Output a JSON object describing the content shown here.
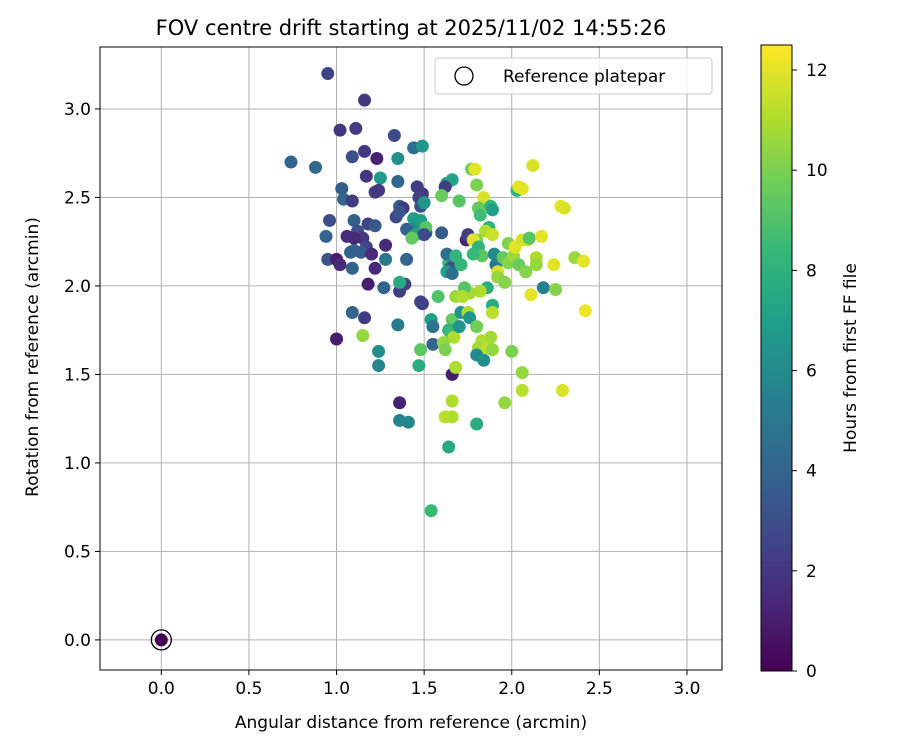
{
  "chart_data": {
    "type": "scatter",
    "title": "FOV centre drift starting at 2025/11/02 14:55:26",
    "xlabel": "Angular distance from reference (arcmin)",
    "ylabel": "Rotation from reference (arcmin)",
    "xlim": [
      -0.35,
      3.2
    ],
    "ylim": [
      -0.17,
      3.35
    ],
    "xticks": [
      "0.0",
      "0.5",
      "1.0",
      "1.5",
      "2.0",
      "2.5",
      "3.0"
    ],
    "yticks": [
      "0.0",
      "0.5",
      "1.0",
      "1.5",
      "2.0",
      "2.5",
      "3.0"
    ],
    "grid": true,
    "legend": {
      "position": "top-right",
      "entries": [
        "Reference platepar"
      ]
    },
    "colorbar": {
      "label": "Hours from first FF file",
      "range": [
        0,
        12.5
      ],
      "ticks": [
        "0",
        "2",
        "4",
        "6",
        "8",
        "10",
        "12"
      ],
      "colormap": "viridis"
    },
    "reference_point": {
      "x": 0.0,
      "y": 0.0,
      "hours": 0.0
    },
    "points": [
      [
        0.95,
        3.2,
        2.5
      ],
      [
        1.16,
        3.05,
        2.0
      ],
      [
        1.11,
        2.89,
        2.2
      ],
      [
        1.02,
        2.88,
        2.0
      ],
      [
        1.33,
        2.85,
        2.8
      ],
      [
        0.74,
        2.7,
        4.0
      ],
      [
        0.88,
        2.67,
        4.2
      ],
      [
        1.09,
        2.73,
        3.0
      ],
      [
        1.16,
        2.76,
        2.0
      ],
      [
        1.23,
        2.72,
        1.2
      ],
      [
        1.44,
        2.78,
        4.5
      ],
      [
        1.35,
        2.72,
        6.2
      ],
      [
        1.49,
        2.79,
        6.6
      ],
      [
        1.17,
        2.62,
        2.0
      ],
      [
        1.25,
        2.61,
        6.8
      ],
      [
        1.35,
        2.59,
        4.0
      ],
      [
        1.63,
        2.58,
        7.0
      ],
      [
        1.66,
        2.6,
        7.2
      ],
      [
        1.62,
        2.56,
        2.3
      ],
      [
        1.46,
        2.56,
        2.3
      ],
      [
        1.03,
        2.55,
        3.6
      ],
      [
        1.04,
        2.49,
        4.0
      ],
      [
        1.09,
        2.48,
        2.2
      ],
      [
        1.22,
        2.53,
        2.3
      ],
      [
        1.24,
        2.54,
        2.0
      ],
      [
        1.49,
        2.52,
        2.1
      ],
      [
        1.47,
        2.5,
        2.4
      ],
      [
        1.48,
        2.45,
        3.0
      ],
      [
        1.5,
        2.47,
        6.5
      ],
      [
        1.36,
        2.45,
        4.0
      ],
      [
        1.38,
        2.44,
        2.0
      ],
      [
        1.6,
        2.51,
        9.6
      ],
      [
        1.7,
        2.48,
        9.2
      ],
      [
        1.77,
        2.66,
        9.8
      ],
      [
        1.79,
        2.66,
        12.0
      ],
      [
        1.8,
        2.57,
        10.0
      ],
      [
        1.84,
        2.5,
        11.8
      ],
      [
        1.82,
        2.44,
        11.0
      ],
      [
        1.81,
        2.44,
        9.5
      ],
      [
        1.88,
        2.45,
        8.2
      ],
      [
        1.89,
        2.43,
        7.0
      ],
      [
        1.82,
        2.4,
        8.6
      ],
      [
        1.87,
        2.33,
        8.0
      ],
      [
        1.85,
        2.31,
        11.0
      ],
      [
        1.89,
        2.29,
        11.5
      ],
      [
        0.96,
        2.37,
        3.0
      ],
      [
        1.1,
        2.37,
        3.8
      ],
      [
        1.34,
        2.39,
        2.8
      ],
      [
        1.36,
        2.42,
        3.2
      ],
      [
        1.44,
        2.38,
        7.0
      ],
      [
        1.46,
        2.33,
        6.0
      ],
      [
        1.48,
        2.37,
        7.0
      ],
      [
        1.4,
        2.32,
        3.8
      ],
      [
        1.45,
        2.29,
        7.0
      ],
      [
        1.51,
        2.3,
        3.5
      ],
      [
        1.51,
        2.33,
        9.2
      ],
      [
        1.5,
        2.29,
        2.8
      ],
      [
        1.43,
        2.27,
        9.5
      ],
      [
        1.6,
        2.3,
        3.5
      ],
      [
        1.18,
        2.35,
        2.5
      ],
      [
        1.22,
        2.34,
        3.5
      ],
      [
        1.12,
        2.31,
        3.0
      ],
      [
        1.15,
        2.27,
        2.0
      ],
      [
        0.94,
        2.28,
        4.0
      ],
      [
        1.06,
        2.28,
        1.5
      ],
      [
        1.1,
        2.27,
        1.5
      ],
      [
        1.17,
        2.22,
        2.5
      ],
      [
        1.28,
        2.23,
        1.5
      ],
      [
        1.08,
        2.19,
        4.0
      ],
      [
        1.14,
        2.19,
        3.5
      ],
      [
        1.2,
        2.18,
        1.5
      ],
      [
        1.1,
        2.2,
        3.8
      ],
      [
        0.95,
        2.15,
        3.2
      ],
      [
        1.0,
        2.15,
        1.0
      ],
      [
        1.02,
        2.12,
        1.5
      ],
      [
        1.09,
        2.1,
        4.0
      ],
      [
        1.22,
        2.1,
        1.5
      ],
      [
        1.28,
        2.15,
        5.0
      ],
      [
        1.4,
        2.15,
        4.0
      ],
      [
        1.18,
        2.01,
        1.0
      ],
      [
        1.27,
        1.99,
        4.0
      ],
      [
        1.36,
        1.97,
        2.2
      ],
      [
        1.39,
        2.01,
        2.5
      ],
      [
        1.36,
        2.02,
        7.5
      ],
      [
        1.64,
        2.13,
        8.5
      ],
      [
        1.63,
        2.18,
        4.5
      ],
      [
        1.67,
        2.13,
        5.8
      ],
      [
        1.68,
        2.17,
        8.2
      ],
      [
        1.65,
        2.1,
        3.0
      ],
      [
        1.63,
        2.08,
        7.0
      ],
      [
        1.66,
        2.07,
        4.5
      ],
      [
        1.71,
        2.12,
        8.2
      ],
      [
        1.74,
        2.26,
        1.2
      ],
      [
        1.75,
        2.29,
        2.3
      ],
      [
        1.8,
        2.26,
        10.2
      ],
      [
        1.78,
        2.26,
        12.0
      ],
      [
        1.81,
        2.22,
        8.0
      ],
      [
        1.83,
        2.17,
        9.3
      ],
      [
        1.78,
        2.18,
        8.4
      ],
      [
        1.9,
        2.18,
        6.0
      ],
      [
        1.91,
        2.12,
        5.0
      ],
      [
        1.95,
        2.16,
        9.5
      ],
      [
        1.92,
        2.08,
        11.8
      ],
      [
        1.92,
        2.05,
        10.5
      ],
      [
        1.96,
        2.02,
        10.2
      ],
      [
        1.98,
        2.13,
        10.2
      ],
      [
        2.01,
        2.17,
        10.6
      ],
      [
        1.98,
        2.24,
        10.2
      ],
      [
        2.02,
        2.22,
        12.0
      ],
      [
        2.04,
        2.12,
        9.6
      ],
      [
        2.06,
        2.26,
        11.8
      ],
      [
        2.09,
        2.26,
        11.5
      ],
      [
        2.1,
        2.27,
        9.2
      ],
      [
        2.14,
        2.16,
        11.0
      ],
      [
        2.14,
        2.12,
        10.5
      ],
      [
        2.08,
        2.08,
        10.2
      ],
      [
        2.17,
        2.28,
        12.0
      ],
      [
        2.24,
        2.12,
        12.0
      ],
      [
        2.36,
        2.16,
        10.6
      ],
      [
        2.41,
        2.14,
        12.0
      ],
      [
        2.03,
        2.54,
        8.0
      ],
      [
        2.04,
        2.56,
        12.0
      ],
      [
        2.06,
        2.55,
        12.0
      ],
      [
        2.12,
        2.68,
        11.8
      ],
      [
        2.28,
        2.45,
        12.0
      ],
      [
        2.3,
        2.44,
        11.8
      ],
      [
        2.42,
        1.86,
        12.2
      ],
      [
        2.18,
        1.99,
        5.5
      ],
      [
        2.25,
        1.98,
        10.2
      ],
      [
        2.11,
        1.95,
        12.0
      ],
      [
        1.86,
        1.99,
        7.8
      ],
      [
        1.82,
        1.97,
        11.0
      ],
      [
        1.76,
        1.96,
        10.8
      ],
      [
        1.73,
        1.99,
        9.2
      ],
      [
        1.68,
        1.94,
        10.6
      ],
      [
        1.72,
        1.94,
        11.0
      ],
      [
        1.58,
        1.94,
        9.0
      ],
      [
        1.49,
        1.9,
        2.2
      ],
      [
        1.48,
        1.91,
        2.5
      ],
      [
        1.54,
        1.81,
        7.0
      ],
      [
        1.66,
        1.81,
        9.5
      ],
      [
        1.71,
        1.85,
        6.5
      ],
      [
        1.75,
        1.85,
        11.0
      ],
      [
        1.76,
        1.82,
        6.5
      ],
      [
        1.89,
        1.89,
        7.8
      ],
      [
        1.89,
        1.85,
        11.2
      ],
      [
        1.55,
        1.77,
        4.8
      ],
      [
        1.64,
        1.75,
        7.8
      ],
      [
        1.65,
        1.74,
        8.4
      ],
      [
        1.67,
        1.71,
        11.0
      ],
      [
        1.7,
        1.77,
        6.5
      ],
      [
        1.8,
        1.77,
        9.8
      ],
      [
        1.83,
        1.69,
        11.0
      ],
      [
        1.81,
        1.65,
        10.8
      ],
      [
        1.86,
        1.65,
        11.2
      ],
      [
        1.89,
        1.64,
        10.5
      ],
      [
        1.88,
        1.71,
        10.8
      ],
      [
        1.8,
        1.61,
        6.0
      ],
      [
        1.84,
        1.58,
        6.2
      ],
      [
        1.55,
        1.67,
        4.0
      ],
      [
        1.61,
        1.68,
        10.5
      ],
      [
        1.62,
        1.64,
        10.0
      ],
      [
        1.66,
        1.5,
        1.0
      ],
      [
        1.68,
        1.54,
        11.0
      ],
      [
        1.48,
        1.64,
        9.3
      ],
      [
        1.47,
        1.55,
        7.8
      ],
      [
        1.35,
        1.78,
        5.2
      ],
      [
        1.24,
        1.63,
        6.2
      ],
      [
        1.24,
        1.55,
        5.8
      ],
      [
        1.15,
        1.72,
        10.5
      ],
      [
        1.16,
        1.82,
        2.2
      ],
      [
        1.09,
        1.85,
        4.0
      ],
      [
        1.0,
        1.7,
        1.0
      ],
      [
        2.0,
        1.63,
        10.0
      ],
      [
        2.06,
        1.51,
        10.5
      ],
      [
        2.06,
        1.41,
        11.2
      ],
      [
        1.96,
        1.34,
        10.5
      ],
      [
        1.66,
        1.35,
        11.0
      ],
      [
        1.62,
        1.26,
        11.2
      ],
      [
        1.66,
        1.26,
        11.0
      ],
      [
        1.8,
        1.22,
        7.8
      ],
      [
        2.29,
        1.41,
        11.8
      ],
      [
        1.36,
        1.34,
        1.2
      ],
      [
        1.36,
        1.24,
        5.5
      ],
      [
        1.41,
        1.23,
        5.8
      ],
      [
        1.64,
        1.09,
        7.5
      ],
      [
        1.54,
        0.73,
        8.4
      ]
    ]
  }
}
